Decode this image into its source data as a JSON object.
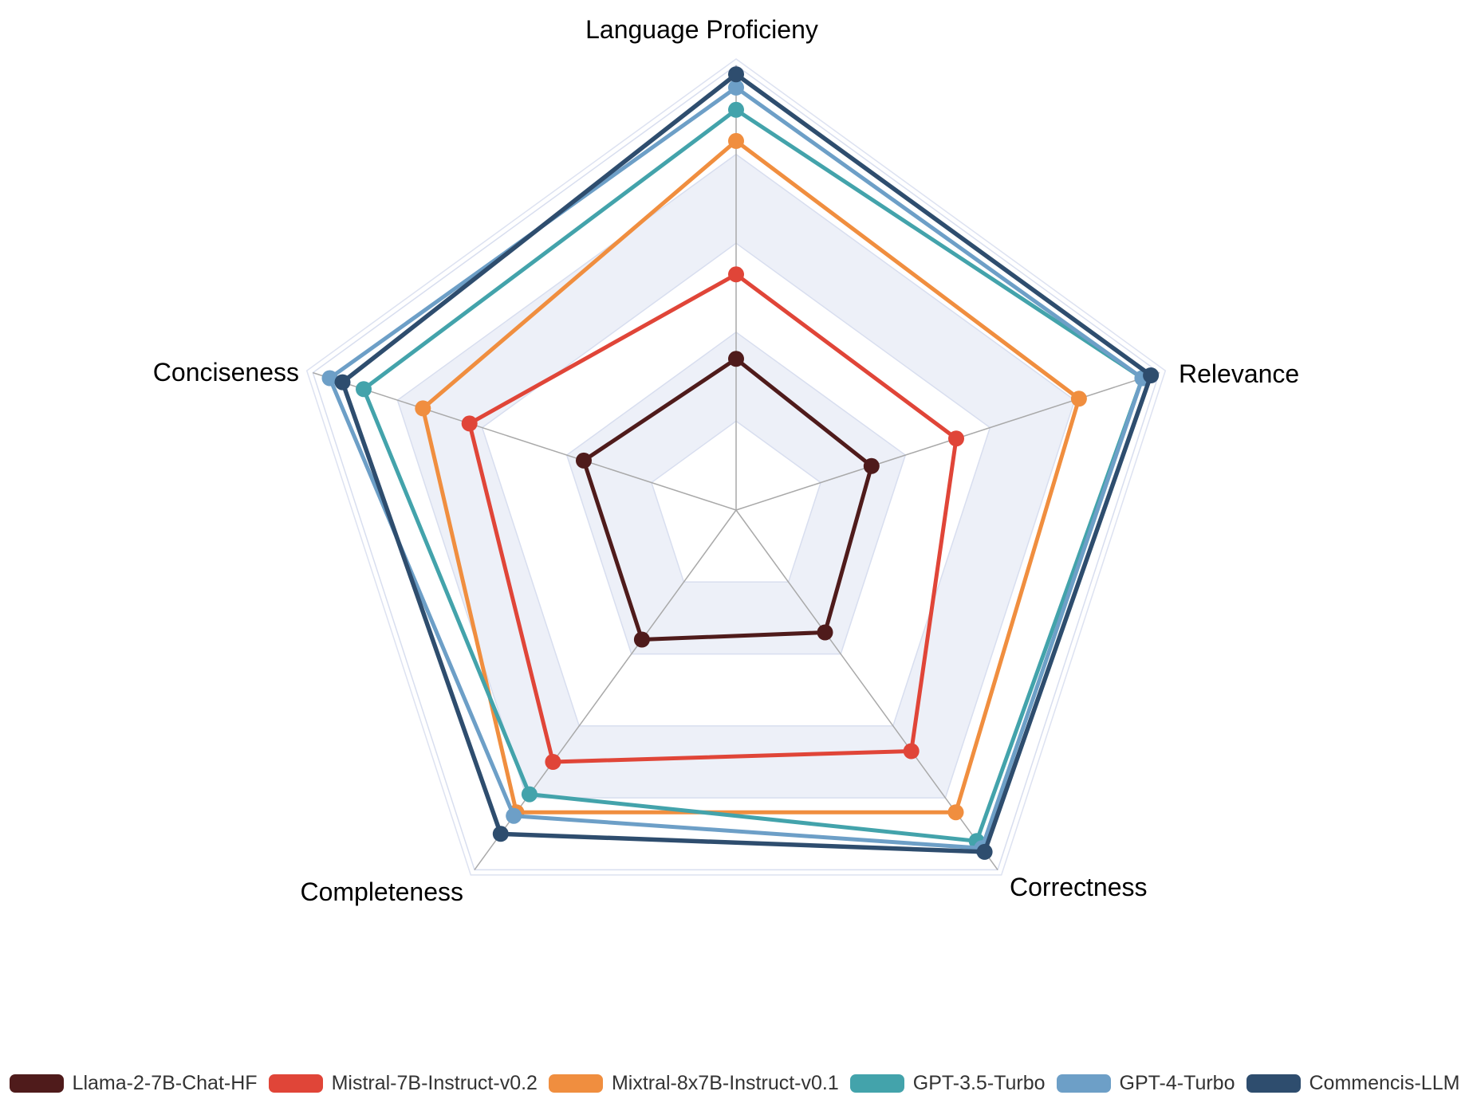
{
  "chart_data": {
    "type": "radar",
    "title": "",
    "axes": [
      "Language Proficieny",
      "Relevance",
      "Correctness",
      "Completeness",
      "Conciseness"
    ],
    "scale": {
      "min": 0,
      "max": 10,
      "rings": 5
    },
    "legend_position": "bottom",
    "series": [
      {
        "name": "Llama-2-7B-Chat-HF",
        "color": "#4F1B1B",
        "values": [
          3.4,
          3.2,
          3.4,
          3.6,
          3.6
        ]
      },
      {
        "name": "Mistral-7B-Instruct-v0.2",
        "color": "#E04538",
        "values": [
          5.3,
          5.2,
          6.7,
          7.0,
          6.3
        ]
      },
      {
        "name": "Mixtral-8x7B-Instruct-v0.1",
        "color": "#F08E3F",
        "values": [
          8.3,
          8.1,
          8.4,
          8.4,
          7.4
        ]
      },
      {
        "name": "GPT-3.5-Turbo",
        "color": "#43A3AB",
        "values": [
          9.0,
          9.6,
          9.2,
          7.9,
          8.8
        ]
      },
      {
        "name": "GPT-4-Turbo",
        "color": "#6D9FC7",
        "values": [
          9.5,
          9.6,
          9.4,
          8.5,
          9.6
        ]
      },
      {
        "name": "Commencis-LLM",
        "color": "#2E4D6E",
        "values": [
          9.8,
          9.8,
          9.5,
          9.0,
          9.3
        ]
      }
    ]
  },
  "colors": {
    "background": "#FFFFFF",
    "band_base": "#FFFFFF",
    "band_alt": "#EDF0F8",
    "ring_line": "#D8DEEF",
    "outer_line": "#DDE2F1",
    "spoke_line": "#A9A9A9",
    "axis_label_text": "#000000",
    "legend_text": "#333333"
  }
}
